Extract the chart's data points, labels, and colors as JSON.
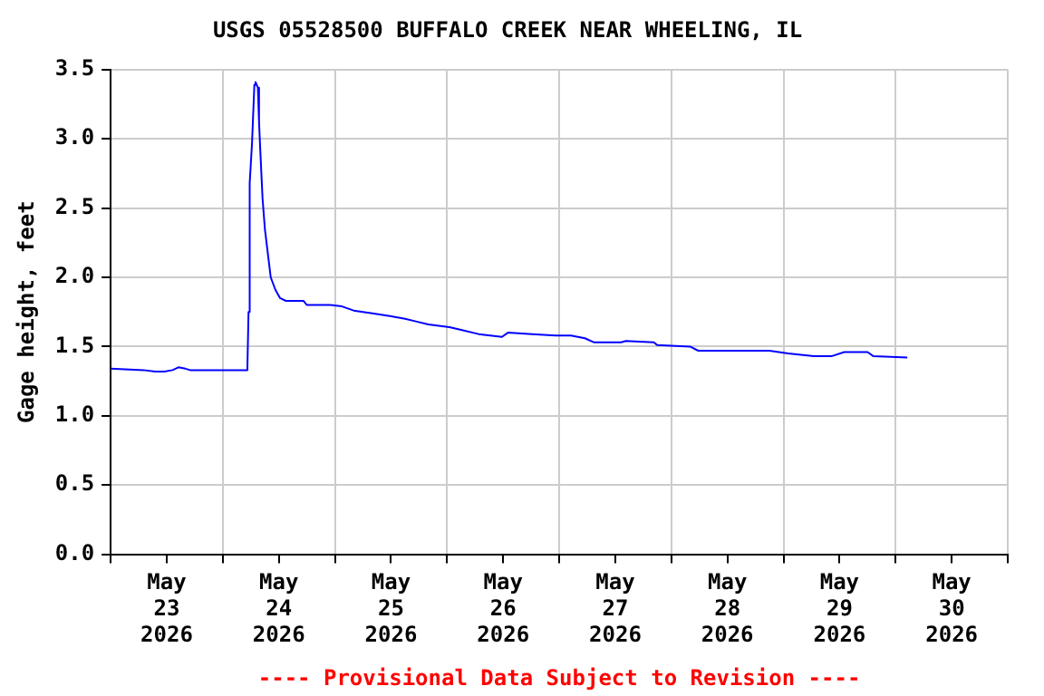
{
  "chart_data": {
    "type": "line",
    "title": "USGS 05528500 BUFFALO CREEK NEAR WHEELING, IL",
    "ylabel": "Gage height, feet",
    "annotations": [
      "---- Provisional Data Subject to Revision ----"
    ],
    "x": [
      "2026-05-23T00:00",
      "2026-05-23T07:00",
      "2026-05-23T09:30",
      "2026-05-23T11:30",
      "2026-05-23T13:15",
      "2026-05-23T14:30",
      "2026-05-23T16:00",
      "2026-05-23T17:00",
      "2026-05-24T05:15",
      "2026-05-24T05:30",
      "2026-05-24T05:45",
      "2026-05-24T06:15",
      "2026-05-24T06:45",
      "2026-05-24T07:00",
      "2026-05-24T07:30",
      "2026-05-24T07:45",
      "2026-05-24T08:00",
      "2026-05-24T08:30",
      "2026-05-24T09:00",
      "2026-05-24T09:45",
      "2026-05-24T10:15",
      "2026-05-24T11:15",
      "2026-05-24T12:15",
      "2026-05-24T13:30",
      "2026-05-24T17:15",
      "2026-05-24T18:00",
      "2026-05-24T23:00",
      "2026-05-25T01:30",
      "2026-05-25T04:00",
      "2026-05-25T08:00",
      "2026-05-25T11:45",
      "2026-05-25T15:00",
      "2026-05-25T17:30",
      "2026-05-25T20:00",
      "2026-05-26T00:30",
      "2026-05-26T03:00",
      "2026-05-26T06:45",
      "2026-05-26T11:45",
      "2026-05-26T13:00",
      "2026-05-26T18:15",
      "2026-05-26T23:15",
      "2026-05-27T02:30",
      "2026-05-27T05:30",
      "2026-05-27T07:30",
      "2026-05-27T13:15",
      "2026-05-27T14:15",
      "2026-05-27T20:15",
      "2026-05-27T21:00",
      "2026-05-28T04:00",
      "2026-05-28T05:45",
      "2026-05-28T21:00",
      "2026-05-29T01:00",
      "2026-05-29T06:30",
      "2026-05-29T10:15",
      "2026-05-29T13:00",
      "2026-05-29T18:00",
      "2026-05-29T19:15",
      "2026-05-30T02:30"
    ],
    "series": [
      {
        "color": "#0000ff",
        "values": [
          1.34,
          1.33,
          1.32,
          1.32,
          1.33,
          1.35,
          1.34,
          1.33,
          1.33,
          1.75,
          2.68,
          2.97,
          3.39,
          3.41,
          3.37,
          3.12,
          2.93,
          2.57,
          2.35,
          2.14,
          2.0,
          1.91,
          1.85,
          1.83,
          1.83,
          1.8,
          1.8,
          1.79,
          1.76,
          1.74,
          1.72,
          1.7,
          1.68,
          1.66,
          1.64,
          1.62,
          1.59,
          1.57,
          1.6,
          1.59,
          1.58,
          1.58,
          1.56,
          1.53,
          1.53,
          1.54,
          1.53,
          1.51,
          1.5,
          1.47,
          1.47,
          1.45,
          1.43,
          1.43,
          1.46,
          1.46,
          1.43,
          1.42
        ]
      }
    ],
    "xlim": [
      "2026-05-23T00:00",
      "2026-05-31T00:00"
    ],
    "xticks": [
      {
        "value": "2026-05-23T00:00",
        "label": null
      },
      {
        "value": "2026-05-23T12:00",
        "label": "May 23 2026"
      },
      {
        "value": "2026-05-24T00:00",
        "label": null
      },
      {
        "value": "2026-05-24T12:00",
        "label": "May 24 2026"
      },
      {
        "value": "2026-05-25T00:00",
        "label": null
      },
      {
        "value": "2026-05-25T12:00",
        "label": "May 25 2026"
      },
      {
        "value": "2026-05-26T00:00",
        "label": null
      },
      {
        "value": "2026-05-26T12:00",
        "label": "May 26 2026"
      },
      {
        "value": "2026-05-27T00:00",
        "label": null
      },
      {
        "value": "2026-05-27T12:00",
        "label": "May 27 2026"
      },
      {
        "value": "2026-05-28T00:00",
        "label": null
      },
      {
        "value": "2026-05-28T12:00",
        "label": "May 28 2026"
      },
      {
        "value": "2026-05-29T00:00",
        "label": null
      },
      {
        "value": "2026-05-29T12:00",
        "label": "May 29 2026"
      },
      {
        "value": "2026-05-30T00:00",
        "label": null
      },
      {
        "value": "2026-05-30T12:00",
        "label": "May 30 2026"
      },
      {
        "value": "2026-05-31T00:00",
        "label": null
      }
    ],
    "ylim": [
      0,
      3.5
    ],
    "yticks": [
      {
        "value": 0,
        "label": "0.0"
      },
      0.5,
      {
        "value": 1,
        "label": "1.0"
      },
      1.5,
      {
        "value": 2,
        "label": "2.0"
      },
      2.5,
      {
        "value": 3,
        "label": "3.0"
      },
      3.5
    ],
    "grid": true,
    "legend": false,
    "marker": "none",
    "line_style": "solid"
  }
}
